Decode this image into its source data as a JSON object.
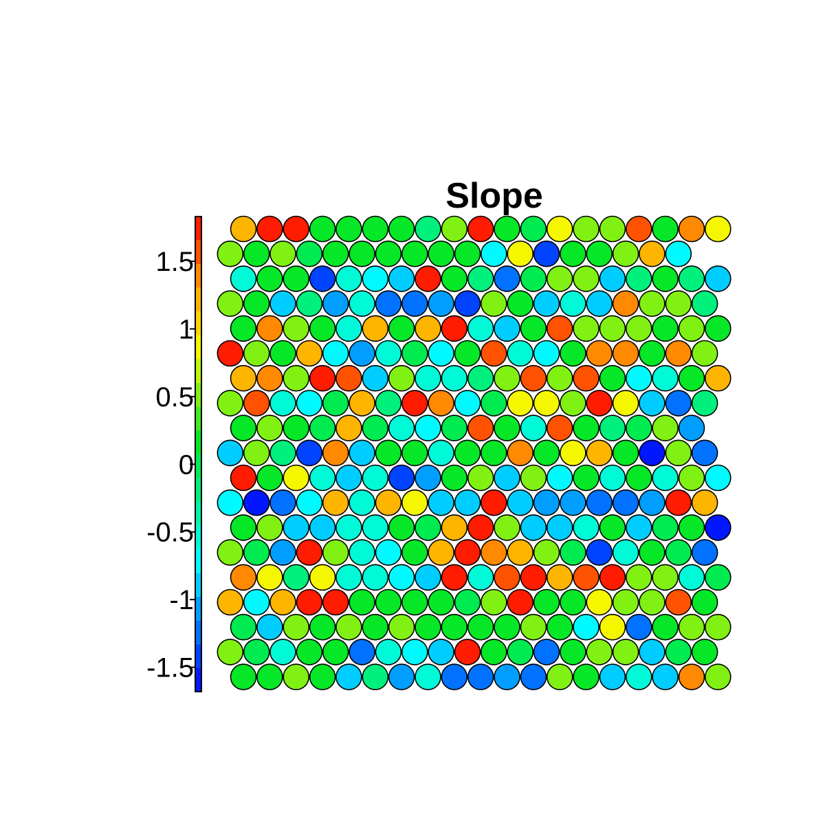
{
  "chart_data": {
    "type": "heatmap",
    "title": "Slope",
    "layout": "hexagonal",
    "grid": false,
    "legend": "left",
    "colorbar": {
      "range": [
        -1.68,
        1.83
      ],
      "ticks": [
        1.5,
        1,
        0.5,
        0,
        -0.5,
        -1,
        -1.5
      ],
      "tick_labels": [
        "1.5",
        "1",
        "0.5",
        "0",
        "-0.5",
        "-1",
        "-1.5"
      ],
      "bins": 20,
      "colormap": "rainbow (blue → cyan → green → yellow → orange → red)"
    },
    "rows": [
      [
        1.3,
        1.75,
        1.75,
        0.25,
        0.1,
        0.1,
        0.25,
        -0.25,
        0.45,
        1.75,
        0.1,
        -0.1,
        0.8,
        0.45,
        0.6,
        1.5,
        0.1,
        1.4,
        0.8
      ],
      [
        0.45,
        0.1,
        0.45,
        -0.1,
        0.25,
        0.25,
        0.25,
        0.1,
        0.1,
        0.25,
        -0.75,
        0.8,
        -1.45,
        0.1,
        0.25,
        0.45,
        1.2,
        -0.75
      ],
      [
        -0.6,
        0.1,
        0.25,
        -1.35,
        -0.6,
        -0.75,
        -0.95,
        1.7,
        0.1,
        -0.25,
        -1.3,
        -0.1,
        0.6,
        0.6,
        -0.95,
        -0.25,
        0.25,
        -0.25,
        -0.95
      ],
      [
        0.6,
        0.1,
        -0.95,
        -0.25,
        -1.1,
        -0.6,
        -1.3,
        -1.3,
        -1.1,
        -1.4,
        0.45,
        0.1,
        -0.95,
        -0.6,
        -0.95,
        1.4,
        0.6,
        0.45,
        -0.25
      ],
      [
        0.25,
        1.4,
        0.45,
        0.25,
        -0.6,
        1.2,
        0.1,
        1.2,
        1.7,
        -0.6,
        -0.95,
        0.1,
        1.5,
        0.6,
        0.6,
        0.45,
        0.25,
        0.45,
        0.1
      ],
      [
        1.7,
        0.6,
        0.1,
        1.2,
        -0.75,
        -1.1,
        -0.6,
        -0.1,
        -0.75,
        0.25,
        1.5,
        -0.6,
        -0.75,
        0.25,
        1.4,
        1.4,
        0.25,
        1.4,
        0.45
      ],
      [
        1.2,
        1.4,
        0.45,
        1.8,
        1.5,
        -0.95,
        0.6,
        -0.6,
        -0.6,
        -0.25,
        0.45,
        1.5,
        0.6,
        1.5,
        0.25,
        -0.75,
        -0.6,
        0.25,
        1.3
      ],
      [
        0.45,
        1.5,
        -0.6,
        -0.75,
        -0.1,
        1.2,
        -0.25,
        1.8,
        1.4,
        -0.75,
        -0.1,
        0.8,
        0.8,
        0.45,
        1.8,
        0.8,
        -0.95,
        -1.3,
        -0.25
      ],
      [
        0.1,
        0.6,
        0.25,
        -0.1,
        1.2,
        -0.1,
        -0.6,
        -0.75,
        -0.1,
        1.5,
        0.1,
        -0.6,
        1.5,
        0.25,
        -0.25,
        -0.1,
        0.45,
        -1.1
      ],
      [
        -0.95,
        0.6,
        -0.25,
        -1.5,
        1.4,
        -0.95,
        0.1,
        0.1,
        -0.6,
        0.1,
        0.1,
        1.4,
        0.25,
        0.8,
        1.3,
        0.1,
        -1.55,
        0.6,
        -1.3
      ],
      [
        1.75,
        0.25,
        0.8,
        -0.6,
        -0.95,
        -0.6,
        -1.5,
        -1.1,
        0.1,
        0.45,
        -0.95,
        0.45,
        -0.75,
        0.1,
        -0.6,
        0.1,
        -0.6,
        0.6,
        -0.75
      ],
      [
        -0.75,
        -1.65,
        -1.3,
        -0.75,
        1.2,
        -0.6,
        1.2,
        0.8,
        -0.95,
        -0.95,
        1.8,
        -0.95,
        -1.1,
        -1.1,
        -1.3,
        -1.3,
        -1.1,
        1.7,
        1.2
      ],
      [
        0.25,
        0.6,
        -0.95,
        -0.95,
        -0.6,
        -0.6,
        0.25,
        -0.1,
        1.2,
        1.8,
        0.6,
        -0.95,
        -0.95,
        -0.6,
        0.1,
        -0.95,
        -0.1,
        0.25,
        -1.55
      ],
      [
        0.45,
        -0.1,
        -1.1,
        1.7,
        0.6,
        -0.6,
        -0.75,
        0.25,
        1.2,
        1.7,
        1.4,
        1.2,
        0.6,
        -0.1,
        -1.5,
        -0.6,
        0.1,
        -0.1,
        -1.3
      ],
      [
        1.4,
        0.8,
        -0.25,
        0.8,
        -0.6,
        -0.6,
        -0.75,
        -0.95,
        1.7,
        -0.6,
        1.5,
        1.7,
        1.2,
        1.5,
        1.8,
        0.6,
        0.45,
        -0.6,
        -0.1
      ],
      [
        1.2,
        -0.75,
        1.2,
        1.7,
        1.7,
        0.25,
        0.1,
        0.1,
        0.25,
        -0.1,
        0.45,
        1.7,
        0.1,
        0.25,
        0.8,
        0.45,
        0.6,
        1.5,
        0.1
      ],
      [
        -0.1,
        -0.95,
        0.45,
        0.1,
        0.45,
        0.1,
        0.45,
        0.25,
        0.25,
        0.1,
        0.1,
        0.45,
        0.25,
        -0.75,
        0.8,
        -1.3,
        0.1,
        0.45,
        0.6
      ],
      [
        0.45,
        -0.1,
        -0.6,
        0.1,
        0.25,
        -1.3,
        -0.6,
        -0.75,
        -0.95,
        1.7,
        0.1,
        -0.1,
        -1.3,
        0.1,
        0.6,
        0.6,
        -0.95,
        -0.1,
        0.25
      ],
      [
        0.25,
        0.1,
        0.6,
        0.1,
        -0.95,
        -0.25,
        -1.1,
        -0.6,
        -1.3,
        -1.3,
        -1.1,
        -1.3,
        0.45,
        0.25,
        -0.95,
        -0.6,
        -0.95,
        1.4,
        0.45
      ]
    ]
  }
}
